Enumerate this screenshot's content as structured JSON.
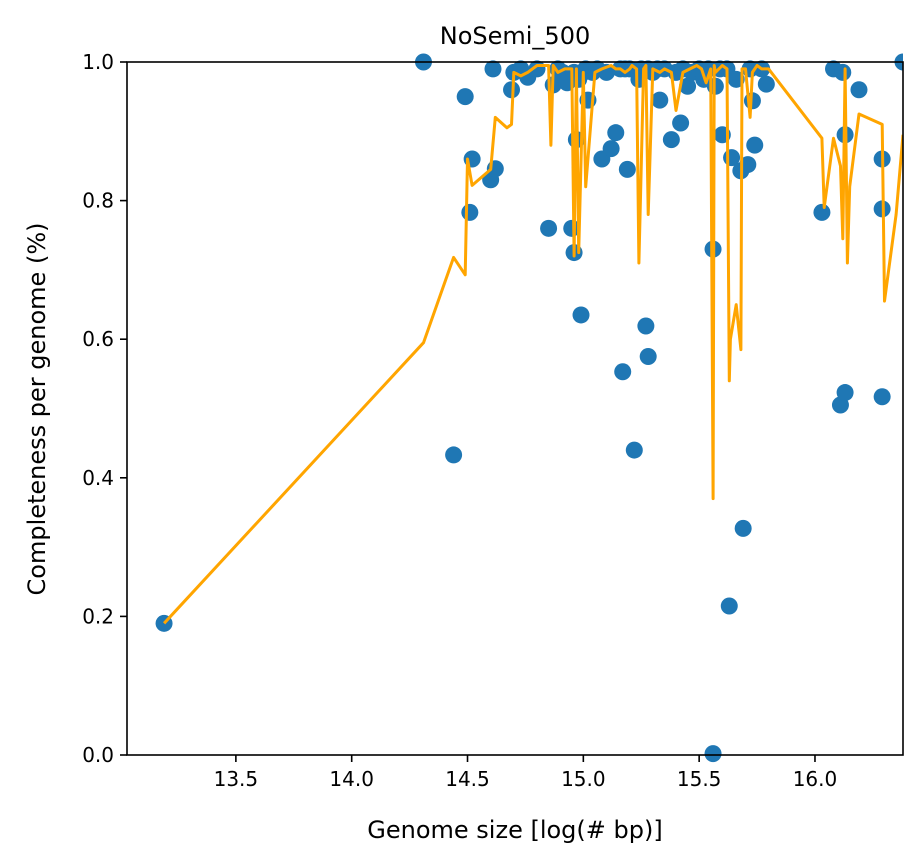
{
  "chart_data": {
    "type": "scatter",
    "title": "NoSemi_500",
    "xlabel": "Genome size [log(# bp)]",
    "ylabel": "Completeness per genome (%)",
    "xlim": [
      13.03,
      16.38
    ],
    "ylim": [
      0.0,
      1.0
    ],
    "xticks": [
      13.5,
      14.0,
      14.5,
      15.0,
      15.5,
      16.0
    ],
    "xtick_labels": [
      "13.5",
      "14.0",
      "14.5",
      "15.0",
      "15.5",
      "16.0"
    ],
    "yticks": [
      0.0,
      0.2,
      0.4,
      0.6,
      0.8,
      1.0
    ],
    "ytick_labels": [
      "0.0",
      "0.2",
      "0.4",
      "0.6",
      "0.8",
      "1.0"
    ],
    "grid": false,
    "colors": {
      "points": "#1f77b4",
      "line": "#ffa500"
    },
    "series": [
      {
        "kind": "scatter",
        "x": [
          13.19,
          14.31,
          14.44,
          14.49,
          14.51,
          14.52,
          14.6,
          14.61,
          14.62,
          14.69,
          14.7,
          14.73,
          14.76,
          14.8,
          14.85,
          14.87,
          14.89,
          14.91,
          14.93,
          14.95,
          14.96,
          14.96,
          14.97,
          14.98,
          14.99,
          15.0,
          15.01,
          15.02,
          15.04,
          15.06,
          15.08,
          15.1,
          15.12,
          15.14,
          15.16,
          15.17,
          15.18,
          15.19,
          15.2,
          15.22,
          15.24,
          15.25,
          15.27,
          15.28,
          15.28,
          15.3,
          15.32,
          15.33,
          15.35,
          15.38,
          15.4,
          15.42,
          15.43,
          15.45,
          15.47,
          15.5,
          15.52,
          15.54,
          15.56,
          15.56,
          15.57,
          15.59,
          15.6,
          15.62,
          15.63,
          15.64,
          15.66,
          15.68,
          15.69,
          15.71,
          15.72,
          15.73,
          15.74,
          15.77,
          15.79,
          16.03,
          16.08,
          16.11,
          16.12,
          16.13,
          16.13,
          16.19,
          16.29,
          16.29,
          16.29,
          16.38
        ],
        "y": [
          0.19,
          1.0,
          0.433,
          0.95,
          0.783,
          0.86,
          0.83,
          0.99,
          0.846,
          0.96,
          0.985,
          0.99,
          0.978,
          0.99,
          0.76,
          0.967,
          0.99,
          0.985,
          0.97,
          0.76,
          0.725,
          0.985,
          0.888,
          0.975,
          0.635,
          0.985,
          0.99,
          0.945,
          0.985,
          0.99,
          0.86,
          0.985,
          0.875,
          0.898,
          0.99,
          0.553,
          0.99,
          0.845,
          0.99,
          0.44,
          0.975,
          0.99,
          0.619,
          0.575,
          0.99,
          0.985,
          0.99,
          0.945,
          0.99,
          0.888,
          0.985,
          0.912,
          0.99,
          0.965,
          0.985,
          0.99,
          0.975,
          0.99,
          0.73,
          0.002,
          0.965,
          0.99,
          0.895,
          0.99,
          0.215,
          0.862,
          0.975,
          0.843,
          0.327,
          0.852,
          0.99,
          0.944,
          0.88,
          0.99,
          0.968,
          0.783,
          0.99,
          0.505,
          0.985,
          0.523,
          0.895,
          0.96,
          0.86,
          0.788,
          0.517,
          1.0
        ]
      },
      {
        "kind": "line",
        "x": [
          13.19,
          14.31,
          14.44,
          14.49,
          14.5,
          14.52,
          14.6,
          14.62,
          14.67,
          14.69,
          14.7,
          14.73,
          14.76,
          14.8,
          14.85,
          14.86,
          14.87,
          14.89,
          14.92,
          14.95,
          14.96,
          14.97,
          14.98,
          15.0,
          15.01,
          15.05,
          15.08,
          15.12,
          15.14,
          15.16,
          15.18,
          15.2,
          15.21,
          15.23,
          15.24,
          15.26,
          15.27,
          15.28,
          15.3,
          15.33,
          15.35,
          15.38,
          15.4,
          15.43,
          15.46,
          15.49,
          15.51,
          15.53,
          15.55,
          15.56,
          15.565,
          15.57,
          15.6,
          15.62,
          15.63,
          15.635,
          15.66,
          15.68,
          15.685,
          15.7,
          15.72,
          15.73,
          15.75,
          15.77,
          15.8,
          16.03,
          16.04,
          16.08,
          16.11,
          16.12,
          16.13,
          16.14,
          16.15,
          16.19,
          16.29,
          16.3,
          16.35,
          16.38
        ],
        "y": [
          0.19,
          0.595,
          0.718,
          0.693,
          0.86,
          0.822,
          0.845,
          0.92,
          0.905,
          0.91,
          0.985,
          0.98,
          0.985,
          0.995,
          0.995,
          0.88,
          0.995,
          0.985,
          0.99,
          0.99,
          0.72,
          0.99,
          0.725,
          0.985,
          0.82,
          0.985,
          0.99,
          0.995,
          0.99,
          0.99,
          0.985,
          0.99,
          0.995,
          0.99,
          0.71,
          0.99,
          0.995,
          0.78,
          0.99,
          0.985,
          0.99,
          0.985,
          0.93,
          0.985,
          0.99,
          0.995,
          0.99,
          0.97,
          0.99,
          0.37,
          0.995,
          0.985,
          0.995,
          0.99,
          0.54,
          0.6,
          0.65,
          0.585,
          0.99,
          0.99,
          0.92,
          0.985,
          0.995,
          0.99,
          0.99,
          0.89,
          0.79,
          0.89,
          0.85,
          0.745,
          0.99,
          0.71,
          0.82,
          0.925,
          0.91,
          0.655,
          0.78,
          0.895
        ]
      }
    ]
  }
}
